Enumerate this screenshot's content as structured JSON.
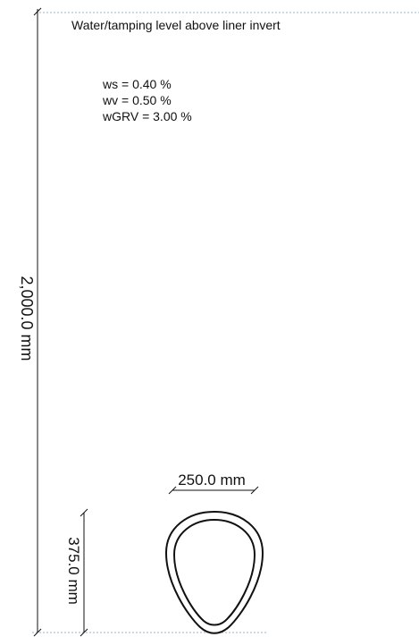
{
  "diagram": {
    "title": "Water/tamping level above liner invert",
    "parameters": [
      "ws = 0.40 %",
      "wv = 0.50 %",
      "wGRV = 3.00 %"
    ],
    "dimensions": {
      "total_height": "2,000.0 mm",
      "profile_height": "375.0 mm",
      "profile_width": "250.0 mm"
    },
    "colors": {
      "line": "#111111",
      "reference_line": "#9ab0c8"
    }
  }
}
